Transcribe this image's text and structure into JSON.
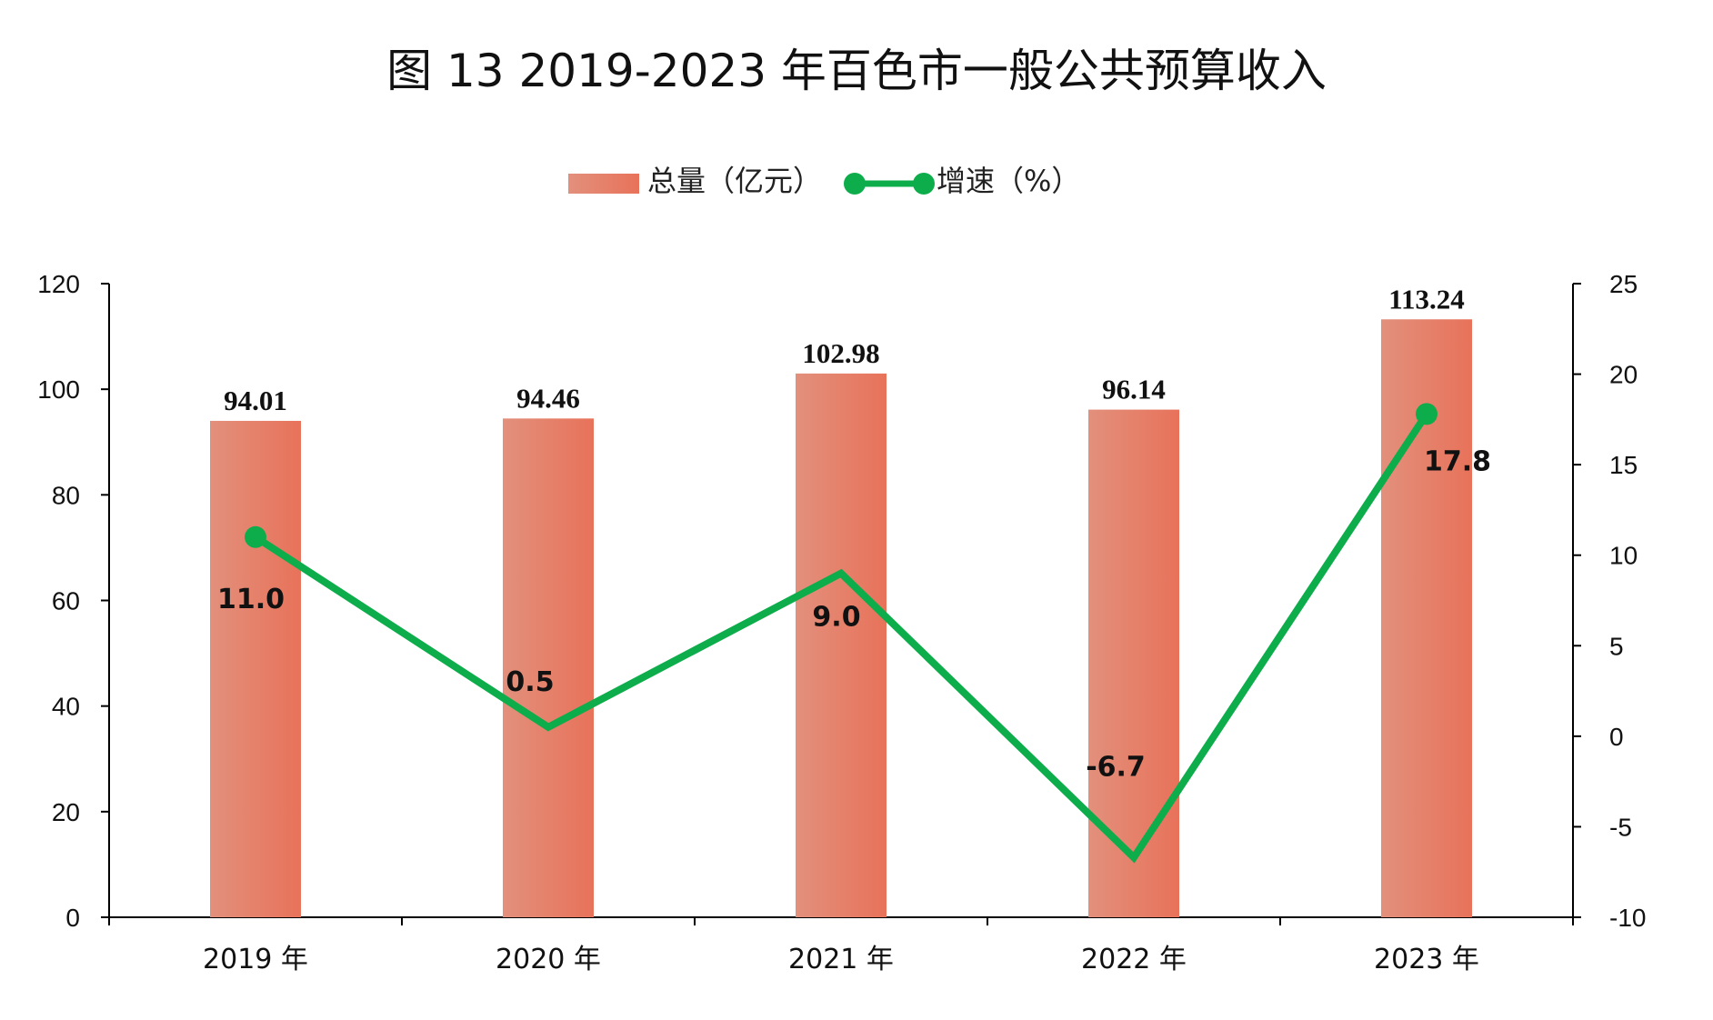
{
  "chart_data": {
    "type": "bar",
    "title": "图 13 2019-2023 年百色市一般公共预算收入",
    "categories": [
      "2019 年",
      "2020 年",
      "2021 年",
      "2022 年",
      "2023 年"
    ],
    "series": [
      {
        "name": "总量（亿元）",
        "type": "bar",
        "axis": "left",
        "values": [
          94.01,
          94.46,
          102.98,
          96.14,
          113.24
        ],
        "labels": [
          "94.01",
          "94.46",
          "102.98",
          "96.14",
          "113.24"
        ],
        "color": "#E8725A",
        "color_light": "#E2907C"
      },
      {
        "name": "增速（%）",
        "type": "line",
        "axis": "right",
        "values": [
          11.0,
          0.5,
          9.0,
          -6.7,
          17.8
        ],
        "labels": [
          "11.0",
          "0.5",
          "9.0",
          "-6.7",
          "17.8"
        ],
        "color": "#0DAD4B"
      }
    ],
    "y_left": {
      "min": 0,
      "max": 120,
      "ticks": [
        0,
        20,
        40,
        60,
        80,
        100,
        120
      ]
    },
    "y_right": {
      "min": -10,
      "max": 25,
      "ticks": [
        -10,
        -5,
        0,
        5,
        10,
        15,
        20,
        25
      ]
    },
    "legend_position": "top-center",
    "grid": false
  }
}
